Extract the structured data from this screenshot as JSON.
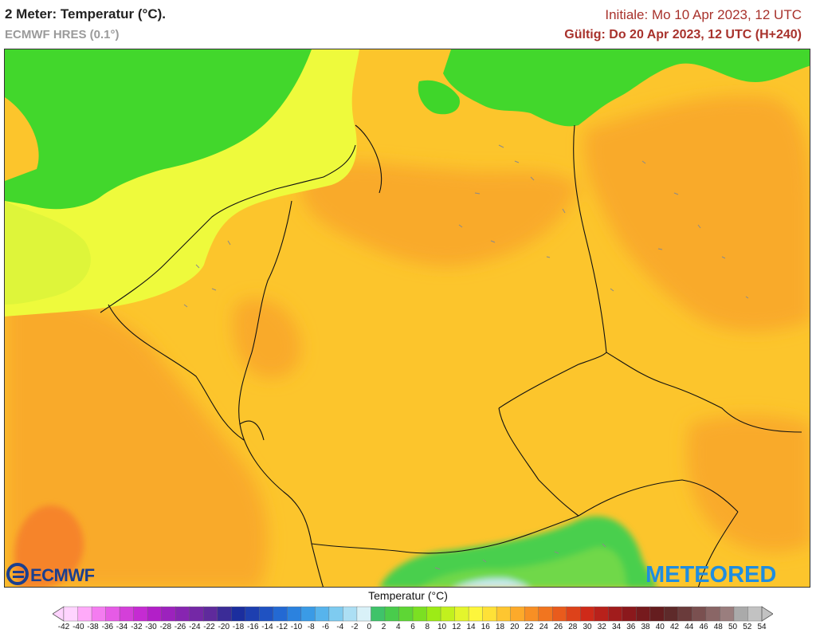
{
  "header": {
    "title": "2 Meter: Temperatur (°C).",
    "model": "ECMWF HRES (0.1°)",
    "initiale": "Initiale: Mo 10 Apr 2023, 12 UTC",
    "valid": "Gültig: Do 20 Apr 2023, 12 UTC (H+240)"
  },
  "logos": {
    "left": "ECMWF",
    "right": "METEORED"
  },
  "legend": {
    "title": "Temperatur (°C)",
    "values": [
      -42,
      -40,
      -38,
      -36,
      -34,
      -32,
      -30,
      -28,
      -26,
      -24,
      -22,
      -20,
      -18,
      -16,
      -14,
      -12,
      -10,
      -8,
      -6,
      -4,
      -2,
      0,
      2,
      4,
      6,
      8,
      10,
      12,
      14,
      16,
      18,
      20,
      22,
      24,
      26,
      28,
      30,
      32,
      34,
      36,
      38,
      40,
      42,
      44,
      46,
      48,
      50,
      52,
      54
    ],
    "colors": [
      "#ffd4ff",
      "#ffaaf9",
      "#f47cf0",
      "#e65be6",
      "#d43fd9",
      "#c52bd2",
      "#b21fc8",
      "#9c22bd",
      "#8725b1",
      "#7428a6",
      "#5f2a9c",
      "#3b2c97",
      "#1b2e9e",
      "#1d3fb0",
      "#1f52c2",
      "#2369d3",
      "#2b82df",
      "#3a9be6",
      "#57b4ec",
      "#7ecbf0",
      "#acdff4",
      "#d9f1f8",
      "#3fc36a",
      "#49cc4c",
      "#5ed635",
      "#7be022",
      "#9deb16",
      "#c2f11e",
      "#e4f52d",
      "#fdf63c",
      "#fee137",
      "#fec630",
      "#fdaa2a",
      "#f88f24",
      "#f1751f",
      "#e95b1c",
      "#dd421a",
      "#cf2a19",
      "#b8211b",
      "#a11c1c",
      "#8b181c",
      "#761a1d",
      "#651d1f",
      "#5e2a2a",
      "#6a3b3b",
      "#7a5050",
      "#8a6666",
      "#9a7e7e",
      "#aaaaaa",
      "#c2c2c2"
    ]
  },
  "map": {
    "colors": {
      "sea_cool": "#3fd62a",
      "sea_mild": "#d9f53a",
      "land_base": "#fdc42c",
      "land_warm": "#fbaa2a",
      "land_hot": "#f8862a",
      "alps_cold": "#3fcf52",
      "border": "#111111",
      "lakes": "#8a8a8a"
    },
    "icons": [
      "ecmwf-logo-icon",
      "meteored-logo-icon"
    ]
  }
}
